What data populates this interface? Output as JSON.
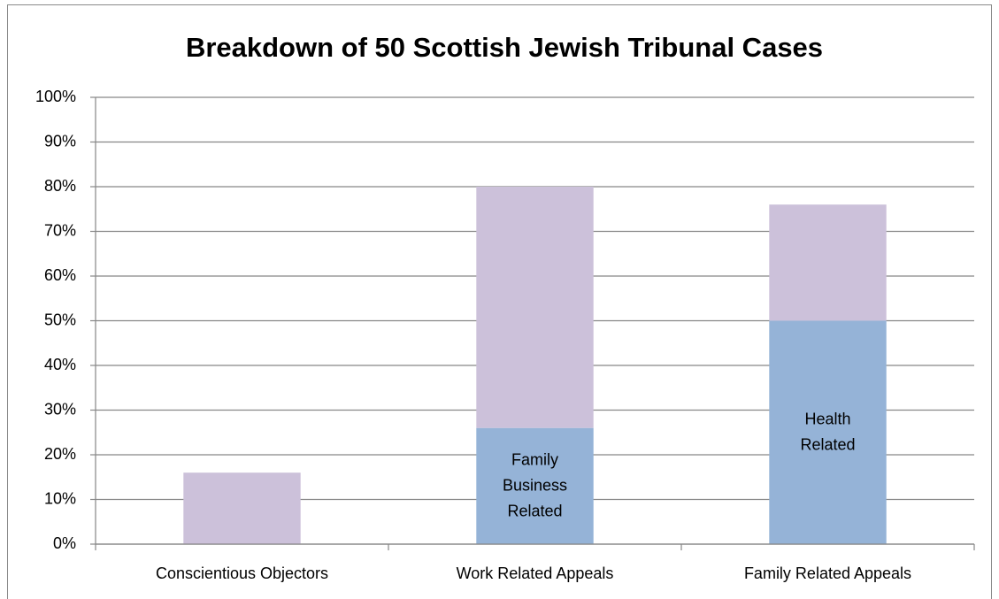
{
  "chart_data": {
    "type": "stacked_bar",
    "title": "Breakdown of 50 Scottish Jewish Tribunal Cases",
    "categories": [
      "Conscientious Objectors",
      "Work Related Appeals",
      "Family Related Appeals"
    ],
    "series": [
      {
        "color": "#95b3d7",
        "values": [
          0,
          26,
          50
        ],
        "labels": [
          null,
          "Family\nBusiness\nRelated",
          "Health\nRelated"
        ]
      },
      {
        "color": "#ccc1da",
        "values": [
          16,
          54,
          26
        ]
      }
    ],
    "ylim": [
      0,
      100
    ],
    "yticks": [
      {
        "value": 0,
        "label": "0%"
      },
      {
        "value": 10,
        "label": "10%"
      },
      {
        "value": 20,
        "label": "20%"
      },
      {
        "value": 30,
        "label": "30%"
      },
      {
        "value": 40,
        "label": "40%"
      },
      {
        "value": 50,
        "label": "50%"
      },
      {
        "value": 60,
        "label": "60%"
      },
      {
        "value": 70,
        "label": "70%"
      },
      {
        "value": 80,
        "label": "80%"
      },
      {
        "value": 90,
        "label": "90%"
      },
      {
        "value": 100,
        "label": "100%"
      }
    ],
    "grid": true
  }
}
